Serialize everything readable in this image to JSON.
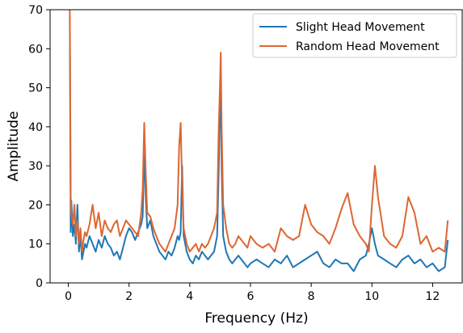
{
  "chart_data": {
    "type": "line",
    "title": "",
    "xlabel": "Frequency (Hz)",
    "ylabel": "Amplitude",
    "xlim": [
      -0.6,
      13.0
    ],
    "ylim": [
      0,
      70
    ],
    "xticks": [
      0,
      2,
      4,
      6,
      8,
      10,
      12
    ],
    "yticks": [
      0,
      10,
      20,
      30,
      40,
      50,
      60,
      70
    ],
    "grid": false,
    "legend": "top-right",
    "series": [
      {
        "name": "Slight Head Movement",
        "color": "#1f77b4",
        "x": [
          0.05,
          0.08,
          0.1,
          0.15,
          0.2,
          0.25,
          0.3,
          0.35,
          0.4,
          0.45,
          0.5,
          0.55,
          0.6,
          0.7,
          0.8,
          0.9,
          1.0,
          1.1,
          1.2,
          1.3,
          1.4,
          1.5,
          1.6,
          1.7,
          1.8,
          1.9,
          2.0,
          2.1,
          2.2,
          2.3,
          2.4,
          2.45,
          2.5,
          2.55,
          2.6,
          2.7,
          2.8,
          2.9,
          3.0,
          3.1,
          3.2,
          3.3,
          3.4,
          3.5,
          3.6,
          3.65,
          3.7,
          3.75,
          3.8,
          3.9,
          4.0,
          4.1,
          4.2,
          4.3,
          4.4,
          4.5,
          4.6,
          4.7,
          4.8,
          4.9,
          4.95,
          5.0,
          5.02,
          5.05,
          5.1,
          5.2,
          5.3,
          5.4,
          5.5,
          5.6,
          5.7,
          5.8,
          5.9,
          6.0,
          6.2,
          6.4,
          6.6,
          6.8,
          7.0,
          7.2,
          7.4,
          7.6,
          7.8,
          8.0,
          8.2,
          8.4,
          8.6,
          8.8,
          9.0,
          9.2,
          9.4,
          9.6,
          9.8,
          9.9,
          10.0,
          10.1,
          10.2,
          10.4,
          10.6,
          10.8,
          11.0,
          11.2,
          11.4,
          11.6,
          11.8,
          12.0,
          12.2,
          12.4,
          12.5
        ],
        "values": [
          68,
          13,
          21,
          12,
          15,
          10,
          20,
          8,
          12,
          6,
          8,
          10,
          9,
          12,
          10,
          8,
          11,
          9,
          12,
          10,
          9,
          7,
          8,
          6,
          9,
          12,
          14,
          13,
          11,
          13,
          15,
          17,
          34,
          22,
          14,
          16,
          12,
          10,
          8,
          7,
          6,
          8,
          7,
          9,
          12,
          11,
          13,
          30,
          12,
          8,
          6,
          5,
          7,
          6,
          8,
          7,
          6,
          7,
          8,
          12,
          27,
          46,
          54,
          30,
          12,
          8,
          6,
          5,
          6,
          7,
          6,
          5,
          4,
          5,
          6,
          5,
          4,
          6,
          5,
          7,
          4,
          5,
          6,
          7,
          8,
          5,
          4,
          6,
          5,
          5,
          3,
          6,
          7,
          10,
          14,
          10,
          7,
          6,
          5,
          4,
          6,
          7,
          5,
          6,
          4,
          5,
          3,
          4,
          11
        ]
      },
      {
        "name": "Random Head Movement",
        "color": "#dd6632",
        "x": [
          0.05,
          0.08,
          0.1,
          0.15,
          0.2,
          0.25,
          0.3,
          0.35,
          0.4,
          0.45,
          0.5,
          0.55,
          0.6,
          0.7,
          0.8,
          0.9,
          1.0,
          1.1,
          1.2,
          1.3,
          1.4,
          1.5,
          1.6,
          1.7,
          1.8,
          1.9,
          2.0,
          2.1,
          2.2,
          2.3,
          2.4,
          2.45,
          2.5,
          2.55,
          2.6,
          2.7,
          2.8,
          2.9,
          3.0,
          3.1,
          3.2,
          3.3,
          3.4,
          3.5,
          3.6,
          3.65,
          3.7,
          3.75,
          3.8,
          3.9,
          4.0,
          4.1,
          4.2,
          4.3,
          4.4,
          4.5,
          4.6,
          4.7,
          4.8,
          4.9,
          4.95,
          5.0,
          5.02,
          5.05,
          5.1,
          5.2,
          5.3,
          5.4,
          5.5,
          5.6,
          5.7,
          5.8,
          5.9,
          6.0,
          6.2,
          6.4,
          6.6,
          6.8,
          7.0,
          7.2,
          7.4,
          7.6,
          7.8,
          8.0,
          8.2,
          8.4,
          8.6,
          8.8,
          9.0,
          9.2,
          9.4,
          9.6,
          9.8,
          9.9,
          10.0,
          10.1,
          10.2,
          10.4,
          10.6,
          10.8,
          11.0,
          11.2,
          11.4,
          11.6,
          11.8,
          12.0,
          12.2,
          12.4,
          12.5
        ],
        "values": [
          70,
          22,
          18,
          15,
          20,
          12,
          16,
          10,
          14,
          8,
          11,
          13,
          12,
          15,
          20,
          14,
          18,
          12,
          16,
          14,
          13,
          15,
          16,
          12,
          14,
          16,
          15,
          14,
          13,
          12,
          18,
          24,
          41,
          28,
          18,
          17,
          14,
          12,
          10,
          9,
          8,
          10,
          12,
          14,
          20,
          35,
          41,
          25,
          14,
          10,
          8,
          9,
          10,
          8,
          10,
          9,
          10,
          12,
          14,
          18,
          38,
          52,
          59,
          40,
          20,
          14,
          10,
          9,
          10,
          12,
          11,
          10,
          9,
          12,
          10,
          9,
          10,
          8,
          14,
          12,
          11,
          12,
          20,
          15,
          13,
          12,
          10,
          14,
          19,
          23,
          15,
          12,
          10,
          8,
          20,
          30,
          22,
          12,
          10,
          9,
          12,
          22,
          18,
          10,
          12,
          8,
          9,
          8,
          16
        ]
      }
    ]
  }
}
